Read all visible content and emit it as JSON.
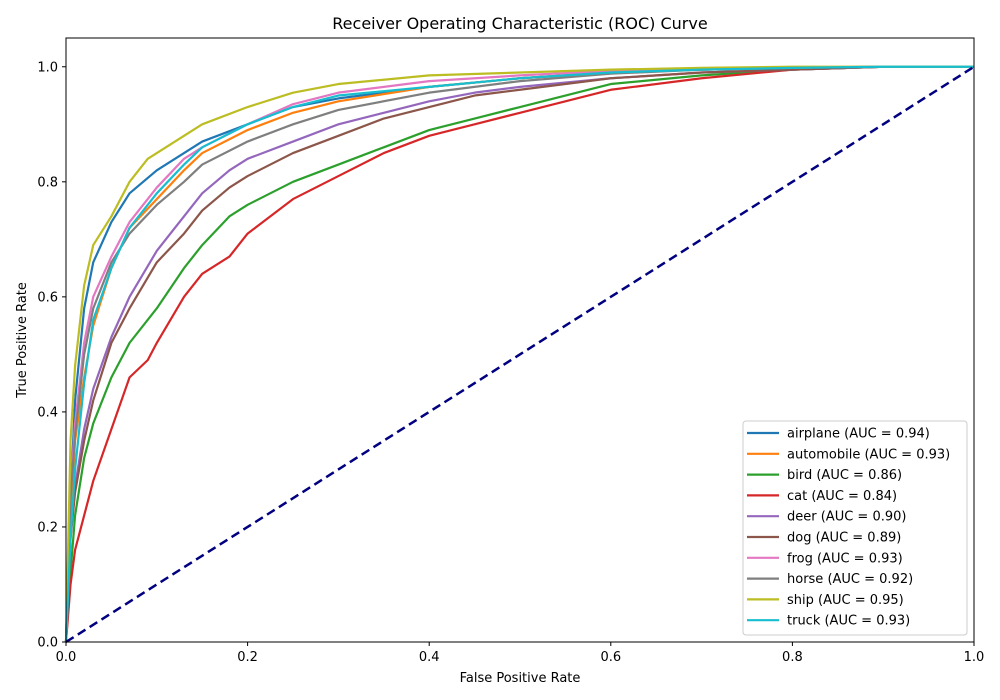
{
  "chart_data": {
    "type": "line",
    "title": "Receiver Operating Characteristic (ROC) Curve",
    "xlabel": "False Positive Rate",
    "ylabel": "True Positive Rate",
    "xlim": [
      0.0,
      1.0
    ],
    "ylim": [
      0.0,
      1.05
    ],
    "xticks": [
      "0.0",
      "0.2",
      "0.4",
      "0.6",
      "0.8",
      "1.0"
    ],
    "yticks": [
      "0.0",
      "0.2",
      "0.4",
      "0.6",
      "0.8",
      "1.0"
    ],
    "grid": false,
    "legend_position": "lower-right",
    "baseline": {
      "x": [
        0,
        1
      ],
      "y": [
        0,
        1
      ],
      "color": "#000080",
      "style": "dashed"
    },
    "series": [
      {
        "name": "airplane (AUC = 0.94)",
        "color": "#1f77b4",
        "x": [
          0,
          0.005,
          0.01,
          0.02,
          0.03,
          0.05,
          0.07,
          0.1,
          0.13,
          0.15,
          0.2,
          0.25,
          0.3,
          0.4,
          0.5,
          0.6,
          0.7,
          0.8,
          0.9,
          1.0
        ],
        "y": [
          0,
          0.25,
          0.42,
          0.58,
          0.66,
          0.73,
          0.78,
          0.82,
          0.85,
          0.87,
          0.9,
          0.93,
          0.945,
          0.965,
          0.98,
          0.99,
          0.995,
          0.998,
          1.0,
          1.0
        ]
      },
      {
        "name": "automobile (AUC = 0.93)",
        "color": "#ff7f0e",
        "x": [
          0,
          0.005,
          0.01,
          0.02,
          0.03,
          0.05,
          0.07,
          0.1,
          0.13,
          0.15,
          0.2,
          0.25,
          0.3,
          0.4,
          0.5,
          0.6,
          0.7,
          0.8,
          0.9,
          1.0
        ],
        "y": [
          0,
          0.2,
          0.35,
          0.46,
          0.55,
          0.65,
          0.72,
          0.77,
          0.82,
          0.85,
          0.89,
          0.92,
          0.94,
          0.965,
          0.98,
          0.99,
          0.995,
          0.998,
          1.0,
          1.0
        ]
      },
      {
        "name": "bird (AUC = 0.86)",
        "color": "#2ca02c",
        "x": [
          0,
          0.005,
          0.01,
          0.02,
          0.03,
          0.05,
          0.07,
          0.1,
          0.13,
          0.15,
          0.18,
          0.2,
          0.25,
          0.3,
          0.35,
          0.4,
          0.45,
          0.5,
          0.55,
          0.6,
          0.7,
          0.8,
          0.9,
          1.0
        ],
        "y": [
          0,
          0.12,
          0.22,
          0.32,
          0.38,
          0.46,
          0.52,
          0.58,
          0.65,
          0.69,
          0.74,
          0.76,
          0.8,
          0.83,
          0.86,
          0.89,
          0.91,
          0.93,
          0.95,
          0.97,
          0.985,
          0.995,
          1.0,
          1.0
        ]
      },
      {
        "name": "cat (AUC = 0.84)",
        "color": "#d62728",
        "x": [
          0,
          0.005,
          0.01,
          0.02,
          0.03,
          0.05,
          0.07,
          0.09,
          0.1,
          0.13,
          0.15,
          0.18,
          0.2,
          0.25,
          0.3,
          0.35,
          0.4,
          0.45,
          0.5,
          0.55,
          0.6,
          0.7,
          0.8,
          0.9,
          1.0
        ],
        "y": [
          0,
          0.1,
          0.16,
          0.22,
          0.28,
          0.37,
          0.46,
          0.49,
          0.52,
          0.6,
          0.64,
          0.67,
          0.71,
          0.77,
          0.81,
          0.85,
          0.88,
          0.9,
          0.92,
          0.94,
          0.96,
          0.98,
          0.995,
          1.0,
          1.0
        ]
      },
      {
        "name": "deer (AUC = 0.90)",
        "color": "#9467bd",
        "x": [
          0,
          0.005,
          0.01,
          0.02,
          0.03,
          0.05,
          0.07,
          0.1,
          0.13,
          0.15,
          0.18,
          0.2,
          0.25,
          0.3,
          0.35,
          0.4,
          0.45,
          0.5,
          0.6,
          0.7,
          0.8,
          0.9,
          1.0
        ],
        "y": [
          0,
          0.2,
          0.27,
          0.37,
          0.44,
          0.53,
          0.6,
          0.68,
          0.74,
          0.78,
          0.82,
          0.84,
          0.87,
          0.9,
          0.92,
          0.94,
          0.955,
          0.965,
          0.98,
          0.99,
          0.995,
          1.0,
          1.0
        ]
      },
      {
        "name": "dog (AUC = 0.89)",
        "color": "#8c564b",
        "x": [
          0,
          0.005,
          0.01,
          0.02,
          0.03,
          0.05,
          0.07,
          0.1,
          0.13,
          0.15,
          0.18,
          0.2,
          0.25,
          0.3,
          0.35,
          0.4,
          0.45,
          0.5,
          0.6,
          0.7,
          0.8,
          0.9,
          1.0
        ],
        "y": [
          0,
          0.18,
          0.26,
          0.35,
          0.42,
          0.52,
          0.58,
          0.66,
          0.71,
          0.75,
          0.79,
          0.81,
          0.85,
          0.88,
          0.91,
          0.93,
          0.95,
          0.96,
          0.98,
          0.99,
          0.995,
          1.0,
          1.0
        ]
      },
      {
        "name": "frog (AUC = 0.93)",
        "color": "#e377c2",
        "x": [
          0,
          0.005,
          0.01,
          0.02,
          0.03,
          0.05,
          0.07,
          0.1,
          0.13,
          0.15,
          0.2,
          0.25,
          0.3,
          0.4,
          0.5,
          0.6,
          0.7,
          0.8,
          0.9,
          1.0
        ],
        "y": [
          0,
          0.26,
          0.38,
          0.52,
          0.6,
          0.67,
          0.73,
          0.79,
          0.84,
          0.86,
          0.9,
          0.935,
          0.955,
          0.975,
          0.985,
          0.993,
          0.997,
          0.999,
          1.0,
          1.0
        ]
      },
      {
        "name": "horse (AUC = 0.92)",
        "color": "#7f7f7f",
        "x": [
          0,
          0.005,
          0.01,
          0.02,
          0.03,
          0.05,
          0.07,
          0.1,
          0.13,
          0.15,
          0.2,
          0.25,
          0.3,
          0.4,
          0.5,
          0.6,
          0.7,
          0.8,
          0.9,
          1.0
        ],
        "y": [
          0,
          0.25,
          0.36,
          0.5,
          0.58,
          0.66,
          0.71,
          0.76,
          0.8,
          0.83,
          0.87,
          0.9,
          0.925,
          0.955,
          0.975,
          0.988,
          0.995,
          0.998,
          1.0,
          1.0
        ]
      },
      {
        "name": "ship (AUC = 0.95)",
        "color": "#bcbd22",
        "x": [
          0,
          0.005,
          0.01,
          0.02,
          0.03,
          0.05,
          0.07,
          0.09,
          0.1,
          0.13,
          0.15,
          0.2,
          0.25,
          0.3,
          0.4,
          0.5,
          0.6,
          0.7,
          0.8,
          0.9,
          1.0
        ],
        "y": [
          0,
          0.35,
          0.48,
          0.62,
          0.69,
          0.74,
          0.8,
          0.84,
          0.85,
          0.88,
          0.9,
          0.93,
          0.955,
          0.97,
          0.985,
          0.99,
          0.995,
          0.998,
          1.0,
          1.0,
          1.0
        ]
      },
      {
        "name": "truck (AUC = 0.93)",
        "color": "#17becf",
        "x": [
          0,
          0.005,
          0.01,
          0.02,
          0.03,
          0.05,
          0.07,
          0.1,
          0.13,
          0.15,
          0.2,
          0.25,
          0.3,
          0.4,
          0.5,
          0.6,
          0.7,
          0.8,
          0.9,
          1.0
        ],
        "y": [
          0,
          0.18,
          0.3,
          0.45,
          0.56,
          0.65,
          0.72,
          0.78,
          0.83,
          0.86,
          0.9,
          0.93,
          0.95,
          0.965,
          0.98,
          0.99,
          0.995,
          0.998,
          1.0,
          1.0
        ]
      }
    ]
  }
}
